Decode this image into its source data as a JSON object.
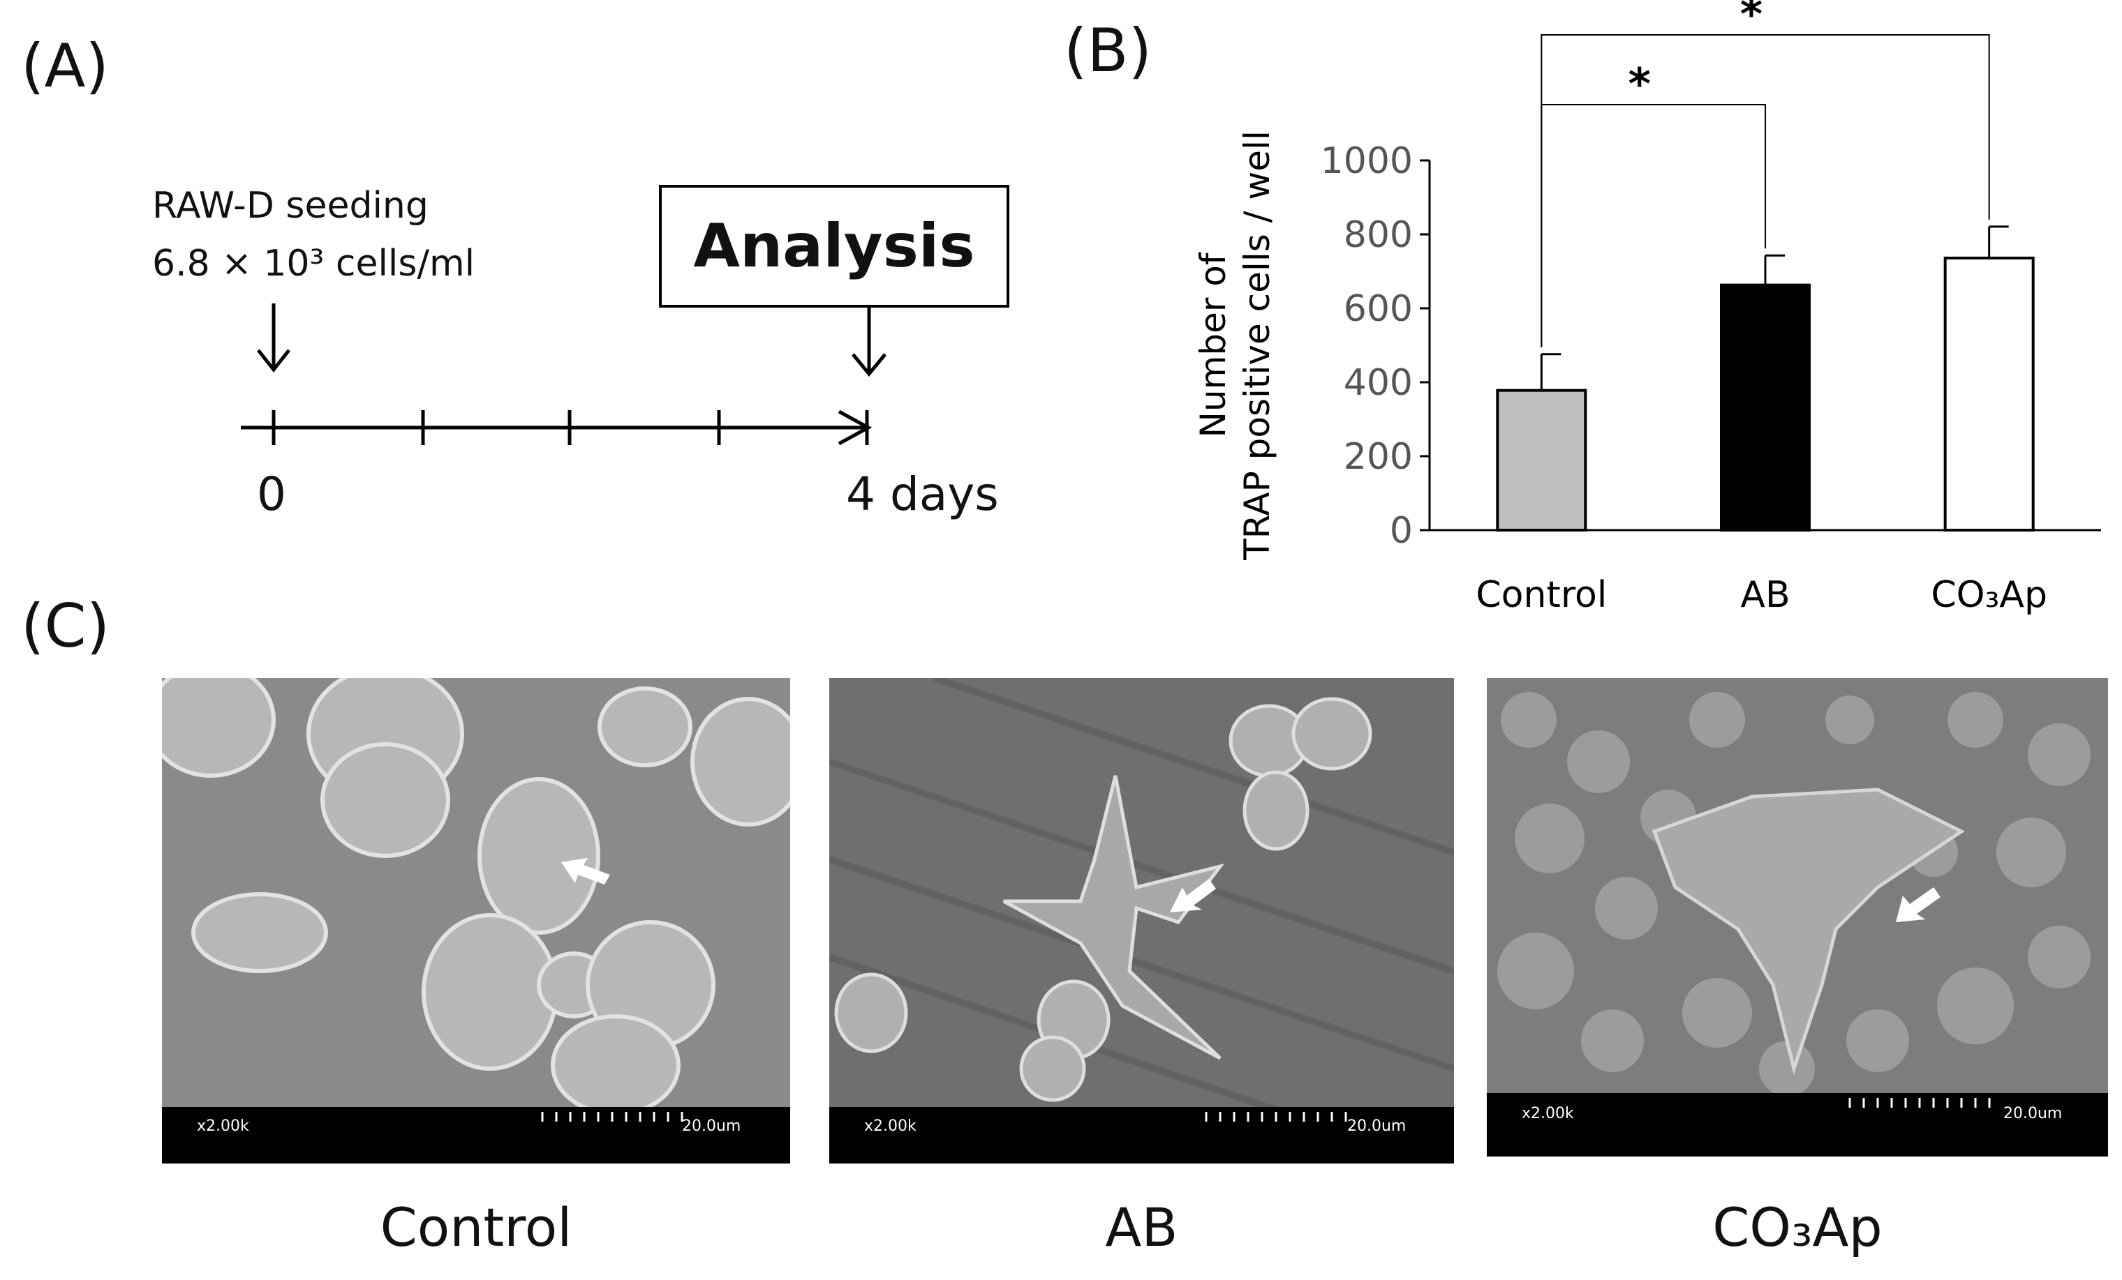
{
  "panels": {
    "a": {
      "label": "(A)",
      "seeding_line1": "RAW-D seeding",
      "seeding_line2": "6.8 × 10³ cells/ml",
      "analysis": "Analysis",
      "day_start": "0",
      "day_end": "4 days"
    },
    "b": {
      "label": "(B)"
    },
    "c": {
      "label": "(C)",
      "images": [
        {
          "caption": "Control",
          "magnification": "x2.00k",
          "scale": "20.0um"
        },
        {
          "caption": "AB",
          "magnification": "x2.00k",
          "scale": "20.0um"
        },
        {
          "caption": "CO₃Ap",
          "magnification": "x2.00k",
          "scale": "20.0um"
        }
      ]
    }
  },
  "chart_data": {
    "type": "bar",
    "ylabel_line1": "Number of",
    "ylabel_line2": "TRAP positive cells / well",
    "categories": [
      "Control",
      "AB",
      "CO₃Ap"
    ],
    "values": [
      378,
      663,
      736
    ],
    "errors": [
      98,
      80,
      85
    ],
    "colors": [
      "#bfbfbf",
      "#000000",
      "#ffffff"
    ],
    "ylim": [
      0,
      1000
    ],
    "yticks": [
      0,
      200,
      400,
      600,
      800,
      1000
    ],
    "significance": [
      {
        "from": "Control",
        "to": "AB",
        "label": "*"
      },
      {
        "from": "Control",
        "to": "CO₃Ap",
        "label": "*"
      }
    ]
  }
}
